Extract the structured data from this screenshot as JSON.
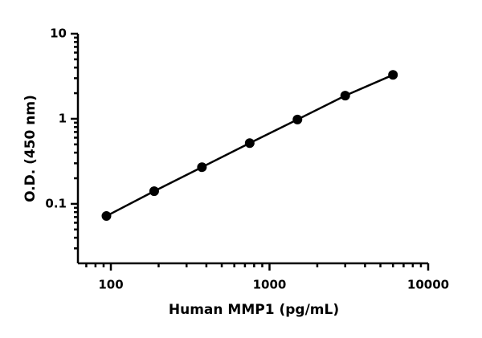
{
  "chart_data": {
    "type": "scatter",
    "x_label": "Human MMP1 (pg/mL)",
    "y_label": "O.D. (450 nm)",
    "x_scale": "log",
    "y_scale": "log",
    "xlim": [
      62,
      10000
    ],
    "ylim": [
      0.02,
      10
    ],
    "xticks": [
      100,
      1000,
      10000
    ],
    "yticks": [
      {
        "value": 10,
        "label": "10"
      },
      {
        "value": 1,
        "label": "1"
      },
      {
        "value": 0.1,
        "label": "0.1"
      }
    ],
    "xminorticks": [
      70,
      80,
      90,
      200,
      300,
      400,
      500,
      600,
      700,
      800,
      900,
      2000,
      3000,
      4000,
      5000,
      6000,
      7000,
      8000,
      9000
    ],
    "yminorticks": [
      0.03,
      0.04,
      0.05,
      0.06,
      0.07,
      0.08,
      0.09,
      0.2,
      0.3,
      0.4,
      0.5,
      0.6,
      0.7,
      0.8,
      0.9,
      2,
      3,
      4,
      5,
      6,
      7,
      8,
      9
    ],
    "series": [
      {
        "color": "#000000",
        "x": [
          93.75,
          187.5,
          375,
          750,
          1500,
          3000,
          6000
        ],
        "values": [
          0.072,
          0.141,
          0.27,
          0.518,
          0.98,
          1.87,
          3.28
        ]
      }
    ]
  }
}
